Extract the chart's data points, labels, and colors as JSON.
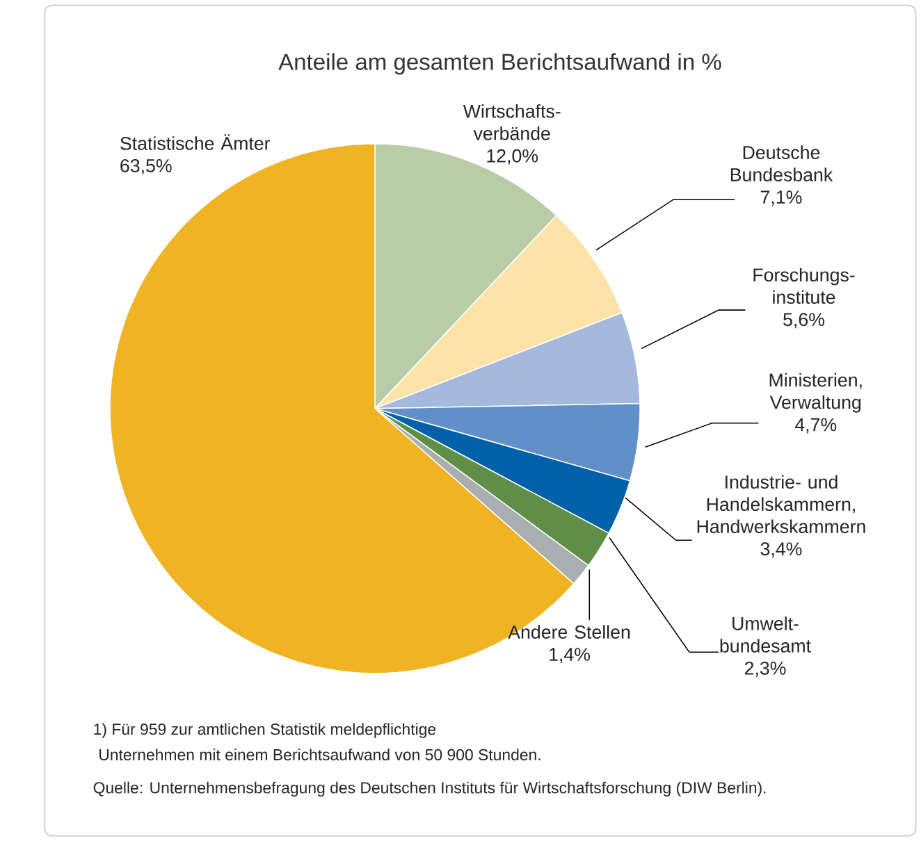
{
  "chart_data": {
    "type": "pie",
    "title": "Anteile am gesamten Berichtsaufwand in %",
    "categories": [
      "Wirtschafts-verbände",
      "Deutsche Bundesbank",
      "Forschungs-institute",
      "Ministerien, Verwaltung",
      "Industrie- und Handelskammern, Handwerkskammern",
      "Umwelt-bundesamt",
      "Andere Stellen",
      "Statistische Ämter"
    ],
    "values": [
      12.0,
      7.1,
      5.6,
      4.7,
      3.4,
      2.3,
      1.4,
      63.5
    ],
    "value_labels": [
      "12,0%",
      "7,1%",
      "5,6%",
      "4,7%",
      "3,4%",
      "2,3%",
      "1,4%",
      "63,5%"
    ],
    "colors": [
      "#b8cca8",
      "#fde3a7",
      "#a4b9dc",
      "#6190c8",
      "#0061a9",
      "#5f8f47",
      "#a9afb1",
      "#f0b323"
    ],
    "annotations": [
      "1)  Für 959 zur amtlichen Statistik meldepflichtige",
      "Unternehmen mit einem Berichtsaufwand von 50 900 Stunden.",
      "Quelle: Unternehmensbefragung des Deutschen Instituts für Wirtschaftsforschung (DIW Berlin)."
    ]
  }
}
